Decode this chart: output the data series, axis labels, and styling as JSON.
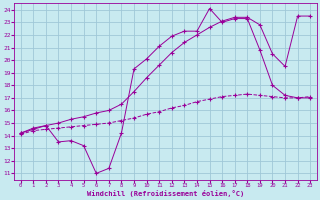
{
  "xlabel": "Windchill (Refroidissement éolien,°C)",
  "background_color": "#c8eaf0",
  "grid_color": "#a0c8d8",
  "line_color": "#990099",
  "xlim": [
    -0.5,
    23.5
  ],
  "ylim": [
    10.5,
    24.5
  ],
  "xticks": [
    0,
    1,
    2,
    3,
    4,
    5,
    6,
    7,
    8,
    9,
    10,
    11,
    12,
    13,
    14,
    15,
    16,
    17,
    18,
    19,
    20,
    21,
    22,
    23
  ],
  "yticks": [
    11,
    12,
    13,
    14,
    15,
    16,
    17,
    18,
    19,
    20,
    21,
    22,
    23,
    24
  ],
  "line1_x": [
    0,
    1,
    2,
    3,
    4,
    5,
    6,
    7,
    8,
    9,
    10,
    11,
    12,
    13,
    14,
    15,
    16,
    17,
    18,
    19,
    20,
    21,
    22,
    23
  ],
  "line1_y": [
    14.2,
    14.6,
    14.8,
    13.5,
    13.6,
    13.2,
    11.0,
    11.4,
    14.2,
    19.3,
    20.1,
    21.1,
    21.9,
    22.3,
    22.3,
    24.1,
    23.0,
    23.3,
    23.3,
    20.8,
    18.0,
    17.2,
    17.0,
    17.0
  ],
  "line2_x": [
    0,
    1,
    2,
    3,
    4,
    5,
    6,
    7,
    8,
    9,
    10,
    11,
    12,
    13,
    14,
    15,
    16,
    17,
    18,
    19,
    20,
    21,
    22,
    23
  ],
  "line2_y": [
    14.1,
    14.4,
    14.5,
    14.6,
    14.7,
    14.8,
    14.9,
    15.0,
    15.2,
    15.4,
    15.7,
    15.9,
    16.2,
    16.4,
    16.7,
    16.9,
    17.1,
    17.2,
    17.3,
    17.2,
    17.1,
    17.0,
    17.0,
    17.1
  ],
  "line3_x": [
    0,
    1,
    2,
    3,
    4,
    5,
    6,
    7,
    8,
    9,
    10,
    11,
    12,
    13,
    14,
    15,
    16,
    17,
    18,
    19,
    20,
    21,
    22,
    23
  ],
  "line3_y": [
    14.2,
    14.5,
    14.8,
    15.0,
    15.3,
    15.5,
    15.8,
    16.0,
    16.5,
    17.5,
    18.6,
    19.6,
    20.6,
    21.4,
    22.0,
    22.6,
    23.1,
    23.4,
    23.4,
    22.8,
    20.5,
    19.5,
    23.5,
    23.5
  ]
}
